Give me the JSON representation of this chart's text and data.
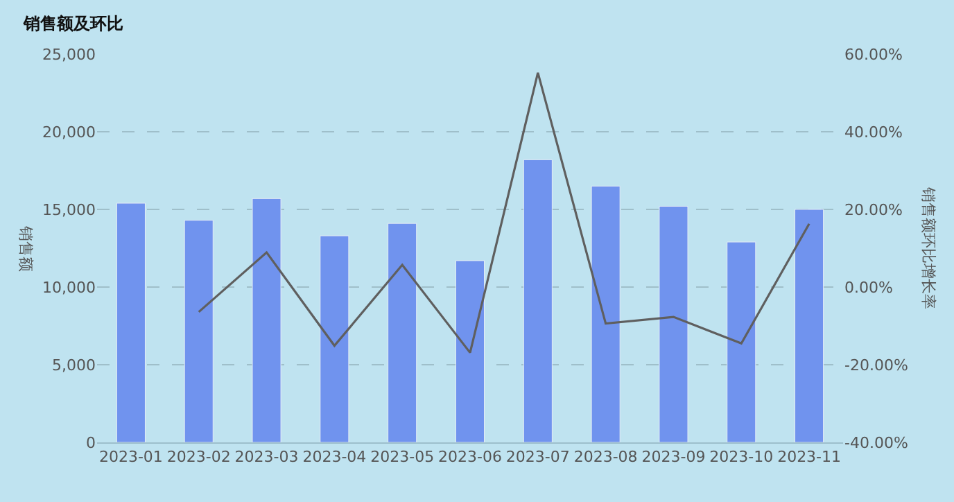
{
  "chart_data": {
    "type": "bar",
    "title": "销售额及环比",
    "ylabel": "销售额",
    "y2label": "销售额环比增长率",
    "categories": [
      "2023-01",
      "2023-02",
      "2023-03",
      "2023-04",
      "2023-05",
      "2023-06",
      "2023-07",
      "2023-08",
      "2023-09",
      "2023-10",
      "2023-11"
    ],
    "series": [
      {
        "color": "#7093ee",
        "values": [
          15400,
          14300,
          15700,
          13300,
          14100,
          11700,
          18200,
          16500,
          15200,
          12900,
          15000
        ]
      },
      {
        "type": "line",
        "axis": "y2",
        "color": "#5f5f5f",
        "line_style": "solid",
        "values": [
          null,
          -6.4,
          8.9,
          -15.1,
          5.7,
          -16.9,
          55.2,
          -9.4,
          -7.7,
          -14.5,
          16.3
        ]
      }
    ],
    "ylim": [
      0,
      25000
    ],
    "yticks": [
      0,
      {
        "value": 5000,
        "label": "5,000"
      },
      {
        "value": 10000,
        "label": "10,000"
      },
      {
        "value": 15000,
        "label": "15,000"
      },
      {
        "value": 20000,
        "label": "20,000"
      },
      {
        "value": 25000,
        "label": "25,000"
      }
    ],
    "y2lim": [
      -40,
      60
    ],
    "y2ticks": [
      {
        "value": -40,
        "label": "-40.00%"
      },
      {
        "value": -20,
        "label": "-20.00%"
      },
      {
        "value": 0,
        "label": "0.00%"
      },
      {
        "value": 20,
        "label": "20.00%"
      },
      {
        "value": 40,
        "label": "40.00%"
      },
      {
        "value": 60,
        "label": "60.00%"
      }
    ],
    "grid": "y",
    "marker": "none"
  }
}
